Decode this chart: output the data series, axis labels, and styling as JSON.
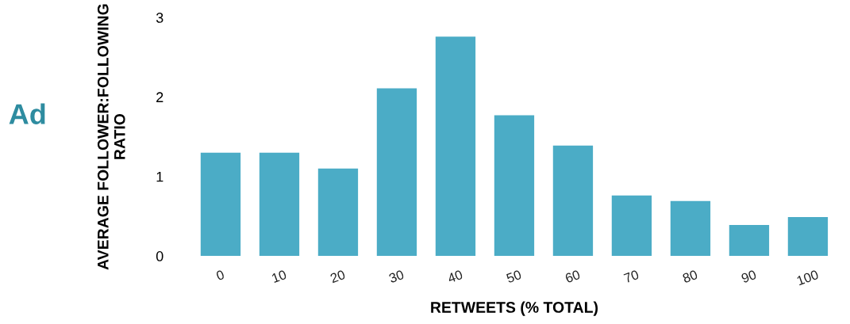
{
  "chart_data": {
    "type": "bar",
    "xlabel": "RETWEETS (% TOTAL)",
    "ylabel": "AVERAGE FOLLOWER:FOLLOWING\nRATIO",
    "annotations": [
      "Ad"
    ],
    "categories": [
      "0",
      "10",
      "20",
      "30",
      "40",
      "50",
      "60",
      "70",
      "80",
      "90",
      "100"
    ],
    "values": [
      1.3,
      1.3,
      1.1,
      2.11,
      2.76,
      1.77,
      1.39,
      0.76,
      0.69,
      0.39,
      0.49
    ],
    "color": "#4bacc6",
    "ylim": [
      0,
      3
    ],
    "yticks": [
      0,
      1,
      2,
      3
    ],
    "grid": false,
    "legend": false
  }
}
